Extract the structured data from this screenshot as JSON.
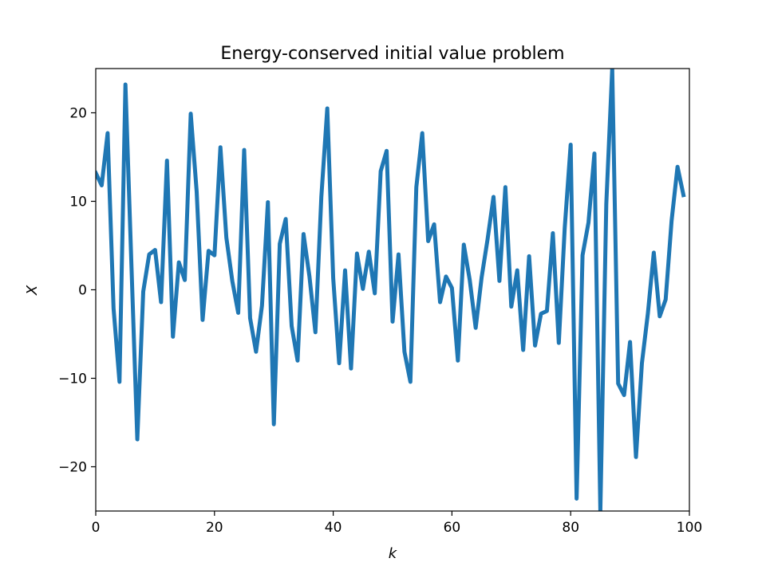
{
  "chart_data": {
    "type": "line",
    "title": "Energy-conserved initial value problem",
    "xlabel": "k",
    "ylabel": "X",
    "xlim": [
      0,
      100
    ],
    "ylim": [
      -25,
      25
    ],
    "xticks": [
      0,
      20,
      40,
      60,
      80,
      100
    ],
    "yticks": [
      -20,
      -10,
      0,
      10,
      20
    ],
    "xtick_labels": [
      "0",
      "20",
      "40",
      "60",
      "80",
      "100"
    ],
    "ytick_labels": [
      "−20",
      "−10",
      "0",
      "10",
      "20"
    ],
    "grid": false,
    "line_color": "#1f77b4",
    "series": [
      {
        "x": [
          0,
          1,
          2,
          3,
          4,
          5,
          6,
          7,
          8,
          9,
          10,
          11,
          12,
          13,
          14,
          15,
          16,
          17,
          18,
          19,
          20,
          21,
          22,
          23,
          24,
          25,
          26,
          27,
          28,
          29,
          30,
          31,
          32,
          33,
          34,
          35,
          36,
          37,
          38,
          39,
          40,
          41,
          42,
          43,
          44,
          45,
          46,
          47,
          48,
          49,
          50,
          51,
          52,
          53,
          54,
          55,
          56,
          57,
          58,
          59,
          60,
          61,
          62,
          63,
          64,
          65,
          66,
          67,
          68,
          69,
          70,
          71,
          72,
          73,
          74,
          75,
          76,
          77,
          78,
          79,
          80,
          81,
          82,
          83,
          84,
          85,
          86,
          87,
          88,
          89,
          90,
          91,
          92,
          93,
          94,
          95,
          96,
          97,
          98,
          99
        ],
        "values": [
          13.2,
          11.8,
          17.7,
          -2.1,
          -10.4,
          23.2,
          3.0,
          -16.9,
          -0.2,
          4.0,
          4.5,
          -1.4,
          14.6,
          -5.3,
          3.1,
          1.1,
          19.9,
          11.1,
          -3.4,
          4.4,
          3.9,
          16.1,
          5.9,
          1.0,
          -2.6,
          15.8,
          -3.2,
          -7.0,
          -1.8,
          9.9,
          -15.2,
          5.2,
          8.0,
          -4.1,
          -8.0,
          6.3,
          1.5,
          -4.8,
          10.5,
          20.5,
          1.3,
          -8.3,
          2.2,
          -8.9,
          4.1,
          0.1,
          4.3,
          -0.4,
          13.4,
          15.7,
          -3.6,
          4.0,
          -7.0,
          -10.4,
          11.6,
          17.7,
          5.5,
          7.4,
          -1.4,
          1.5,
          0.2,
          -8.0,
          5.1,
          1.1,
          -4.3,
          1.4,
          5.7,
          10.5,
          1.0,
          11.6,
          -1.9,
          2.2,
          -6.8,
          3.8,
          -6.3,
          -2.7,
          -2.4,
          6.4,
          -6.0,
          7.0,
          16.4,
          -23.6,
          3.9,
          7.6,
          15.4,
          -25.0,
          9.7,
          25.0,
          -10.6,
          -11.9,
          -5.9,
          -18.9,
          -8.3,
          -2.7,
          4.2,
          -3.0,
          -1.1,
          7.8,
          13.9,
          10.7
        ]
      }
    ]
  }
}
